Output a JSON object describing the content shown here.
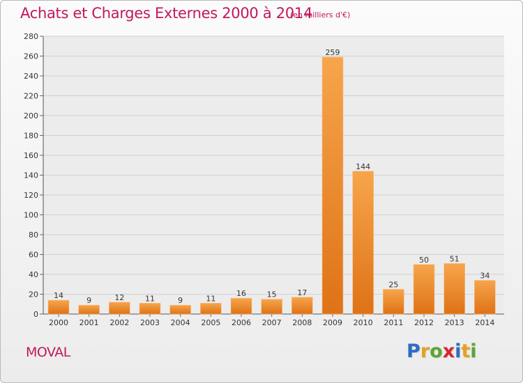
{
  "header": {
    "title": "Achats et Charges Externes 2000 à 2014",
    "subtitle": "(en milliers d'€)"
  },
  "footer": {
    "commune": "MOVAL",
    "logo_letters": [
      "P",
      "r",
      "o",
      "x",
      "i",
      "t",
      "i"
    ],
    "logo_colors": [
      "#2b6cc4",
      "#e8a020",
      "#5aa632",
      "#d8262e",
      "#2b6cc4",
      "#e8a020",
      "#5aa632"
    ]
  },
  "colors": {
    "accent": "#c2185b",
    "bar_light": "#f7a54c",
    "bar_dark": "#df7418",
    "grid": "#d0d0d0"
  },
  "chart_data": {
    "type": "bar",
    "categories": [
      "2000",
      "2001",
      "2002",
      "2003",
      "2004",
      "2005",
      "2006",
      "2007",
      "2008",
      "2009",
      "2010",
      "2011",
      "2012",
      "2013",
      "2014"
    ],
    "values": [
      14,
      9,
      12,
      11,
      9,
      11,
      16,
      15,
      17,
      259,
      144,
      25,
      50,
      51,
      34
    ],
    "yticks": [
      0,
      20,
      40,
      60,
      80,
      100,
      120,
      140,
      160,
      180,
      200,
      220,
      240,
      260,
      280
    ],
    "ylim": [
      0,
      280
    ],
    "grid": true,
    "data_labels": true
  }
}
